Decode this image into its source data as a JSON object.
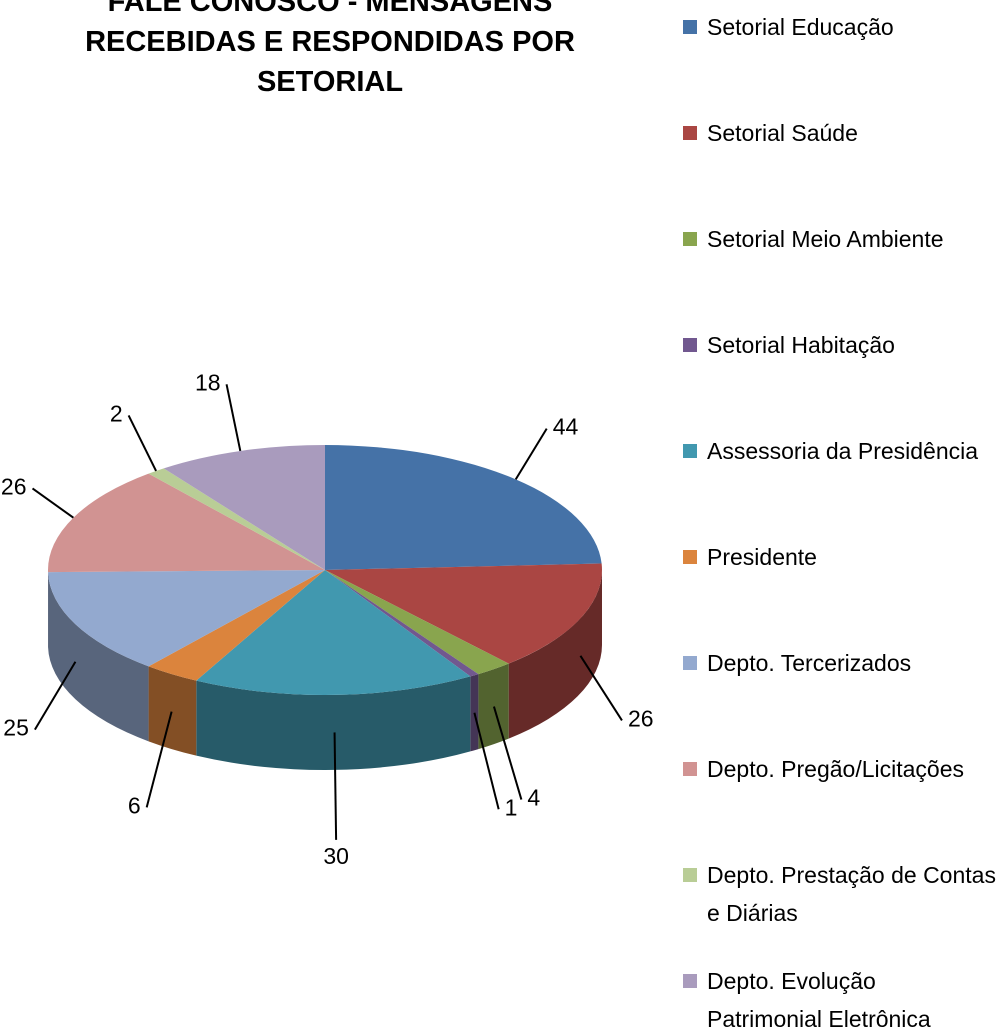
{
  "chart_data": {
    "type": "pie",
    "title": "FALE CONOSCO - MENSAGENS RECEBIDAS E RESPONDIDAS POR SETORIAL",
    "categories": [
      "Setorial Educação",
      "Setorial Saúde",
      "Setorial Meio Ambiente",
      "Setorial Habitação",
      "Assessoria da Presidência",
      "Presidente",
      "Depto. Tercerizados",
      "Depto. Pregão/Licitações",
      "Depto. Prestação de Contas e Diárias",
      "Depto. Evolução Patrimonial Eletrônica"
    ],
    "values": [
      44,
      26,
      4,
      1,
      30,
      6,
      25,
      26,
      2,
      18
    ],
    "colors": [
      "#4572A7",
      "#AA4643",
      "#89A54E",
      "#71588F",
      "#4198AF",
      "#DB843D",
      "#93A9CF",
      "#D19392",
      "#B9CD96",
      "#A99BBD"
    ],
    "legend": "right"
  }
}
